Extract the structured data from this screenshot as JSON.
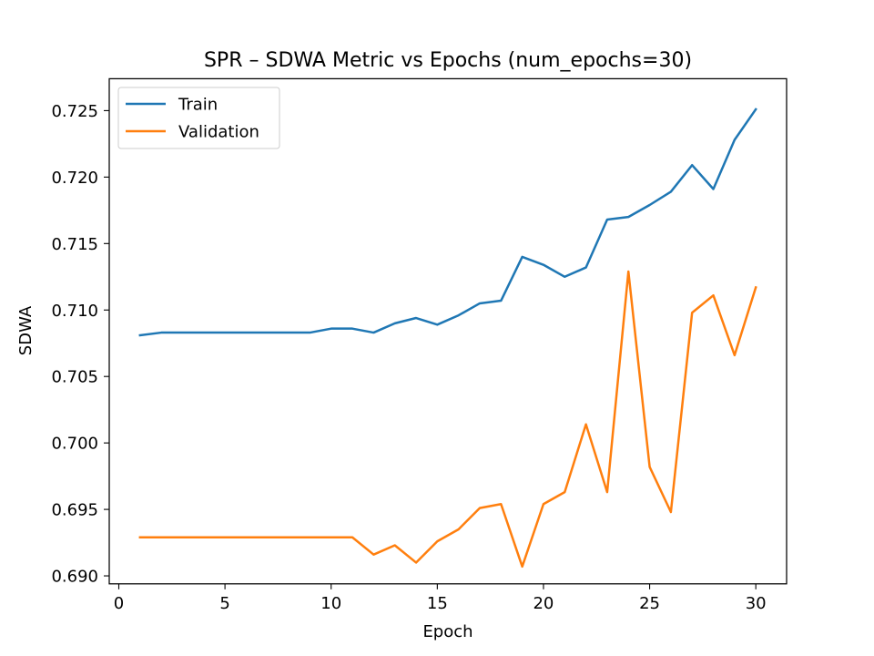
{
  "chart_data": {
    "type": "line",
    "title": "SPR – SDWA Metric vs Epochs (num_epochs=30)",
    "xlabel": "Epoch",
    "ylabel": "SDWA",
    "xlim": [
      -0.45,
      31.45
    ],
    "ylim": [
      0.6894,
      0.7274
    ],
    "xticks": [
      0,
      5,
      10,
      15,
      20,
      25,
      30
    ],
    "xtick_labels": [
      "0",
      "5",
      "10",
      "15",
      "20",
      "25",
      "30"
    ],
    "yticks": [
      0.69,
      0.695,
      0.7,
      0.705,
      0.71,
      0.715,
      0.72,
      0.725
    ],
    "ytick_labels": [
      "0.690",
      "0.695",
      "0.700",
      "0.705",
      "0.710",
      "0.715",
      "0.720",
      "0.725"
    ],
    "grid": false,
    "legend_position": "top-left",
    "x": [
      1,
      2,
      3,
      4,
      5,
      6,
      7,
      8,
      9,
      10,
      11,
      12,
      13,
      14,
      15,
      16,
      17,
      18,
      19,
      20,
      21,
      22,
      23,
      24,
      25,
      26,
      27,
      28,
      29,
      30
    ],
    "series": [
      {
        "name": "Train",
        "color": "#1f77b4",
        "values": [
          0.7081,
          0.7083,
          0.7083,
          0.7083,
          0.7083,
          0.7083,
          0.7083,
          0.7083,
          0.7083,
          0.7086,
          0.7086,
          0.7083,
          0.709,
          0.7094,
          0.7089,
          0.7096,
          0.7105,
          0.7107,
          0.714,
          0.7134,
          0.7125,
          0.7132,
          0.7168,
          0.717,
          0.7179,
          0.7189,
          0.7209,
          0.7191,
          0.7228,
          0.7251
        ]
      },
      {
        "name": "Validation",
        "color": "#ff7f0e",
        "values": [
          0.6929,
          0.6929,
          0.6929,
          0.6929,
          0.6929,
          0.6929,
          0.6929,
          0.6929,
          0.6929,
          0.6929,
          0.6929,
          0.6916,
          0.6923,
          0.691,
          0.6926,
          0.6935,
          0.6951,
          0.6954,
          0.6907,
          0.6954,
          0.6963,
          0.7014,
          0.6963,
          0.7129,
          0.6982,
          0.6948,
          0.7098,
          0.7111,
          0.7066,
          0.7117
        ]
      }
    ]
  }
}
